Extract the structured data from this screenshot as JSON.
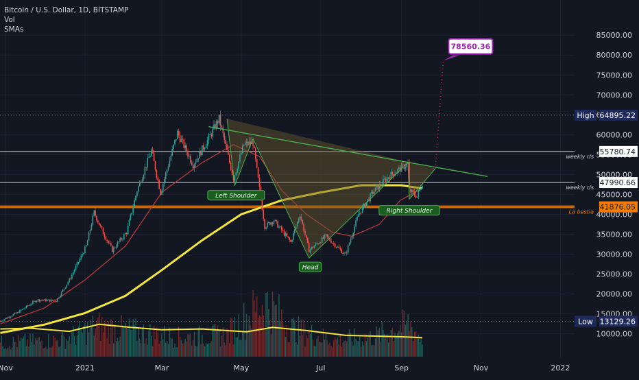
{
  "legend": {
    "symbol": "Bitcoin / U.S. Dollar, 1D, BITSTAMP",
    "vol": "Vol",
    "smas": "SMAs"
  },
  "chart_data": {
    "type": "candlestick",
    "ylim": [
      7000,
      89000
    ],
    "y_ticks": [
      10000,
      15000,
      20000,
      25000,
      30000,
      35000,
      40000,
      45000,
      50000,
      55000,
      60000,
      65000,
      70000,
      75000,
      80000,
      85000
    ],
    "y_tick_labels": [
      "10000.00",
      "15000.00",
      "20000.00",
      "25000.00",
      "30000.00",
      "35000.00",
      "40000.00",
      "45000.00",
      "50000.00",
      "55000.00",
      "60000.00",
      "65000.00",
      "70000.00",
      "75000.00",
      "80000.00",
      "85000.00"
    ],
    "x_labels": [
      {
        "text": "Nov",
        "date": "2020-11-01"
      },
      {
        "text": "2021",
        "date": "2021-01-01"
      },
      {
        "text": "Mar",
        "date": "2021-03-01"
      },
      {
        "text": "May",
        "date": "2021-05-01"
      },
      {
        "text": "Jul",
        "date": "2021-07-01"
      },
      {
        "text": "Sep",
        "date": "2021-09-01"
      },
      {
        "text": "Nov",
        "date": "2021-11-01"
      },
      {
        "text": "2022",
        "date": "2022-01-01"
      }
    ],
    "price_path": [
      [
        "2020-10-28",
        13200
      ],
      [
        "2020-11-10",
        15300
      ],
      [
        "2020-11-25",
        18500
      ],
      [
        "2020-12-10",
        18300
      ],
      [
        "2020-12-20",
        23500
      ],
      [
        "2021-01-02",
        32000
      ],
      [
        "2021-01-08",
        40500
      ],
      [
        "2021-01-14",
        36000
      ],
      [
        "2021-01-22",
        31000
      ],
      [
        "2021-02-02",
        35500
      ],
      [
        "2021-02-10",
        46000
      ],
      [
        "2021-02-21",
        56000
      ],
      [
        "2021-02-28",
        45500
      ],
      [
        "2021-03-13",
        60500
      ],
      [
        "2021-03-25",
        52500
      ],
      [
        "2021-04-05",
        58500
      ],
      [
        "2021-04-14",
        64000
      ],
      [
        "2021-04-25",
        49000
      ],
      [
        "2021-05-03",
        57500
      ],
      [
        "2021-05-10",
        58000
      ],
      [
        "2021-05-19",
        37000
      ],
      [
        "2021-05-26",
        38500
      ],
      [
        "2021-06-08",
        33000
      ],
      [
        "2021-06-15",
        40000
      ],
      [
        "2021-06-22",
        31000
      ],
      [
        "2021-07-05",
        34500
      ],
      [
        "2021-07-20",
        29800
      ],
      [
        "2021-07-30",
        40000
      ],
      [
        "2021-08-10",
        45500
      ],
      [
        "2021-08-22",
        49500
      ],
      [
        "2021-09-06",
        52700
      ],
      [
        "2021-09-07",
        46000
      ],
      [
        "2021-09-13",
        44500
      ],
      [
        "2021-09-17",
        47990
      ]
    ],
    "price_lines": [
      {
        "label": "High",
        "value": 64895.22,
        "text": "64895.22",
        "style": "dotted",
        "color": "#6b6f7a"
      },
      {
        "label": "weekly r/s",
        "value": 55780.74,
        "text": "55780.74",
        "style": "solid",
        "color": "#d1d4dc"
      },
      {
        "label": "weekly r/s",
        "value": 47990.66,
        "text": "47990.66",
        "style": "solid",
        "color": "#d1d4dc"
      },
      {
        "label": "La bestia",
        "value": 41876.05,
        "text": "41876.05",
        "style": "thick",
        "color": "#f57c00"
      },
      {
        "label": "Low",
        "value": 13129.26,
        "text": "13129.26",
        "style": "dotted",
        "color": "#6b6f7a"
      }
    ],
    "target": {
      "value": 78560.36,
      "text": "78560.36",
      "date": "2021-10-03",
      "color": "#9c27b0"
    },
    "sma_fast_path": [
      [
        "2020-10-28",
        12500
      ],
      [
        "2020-12-01",
        16500
      ],
      [
        "2021-01-01",
        23500
      ],
      [
        "2021-02-01",
        32000
      ],
      [
        "2021-03-01",
        45500
      ],
      [
        "2021-04-01",
        53000
      ],
      [
        "2021-04-25",
        57500
      ],
      [
        "2021-05-15",
        54500
      ],
      [
        "2021-06-01",
        46000
      ],
      [
        "2021-06-20",
        40000
      ],
      [
        "2021-07-10",
        35500
      ],
      [
        "2021-07-25",
        34500
      ],
      [
        "2021-08-15",
        37500
      ],
      [
        "2021-08-31",
        43500
      ],
      [
        "2021-09-17",
        46500
      ]
    ],
    "sma_slow_path": [
      [
        "2020-10-28",
        10200
      ],
      [
        "2020-12-01",
        12300
      ],
      [
        "2021-01-01",
        15200
      ],
      [
        "2021-02-01",
        19500
      ],
      [
        "2021-03-01",
        26000
      ],
      [
        "2021-04-01",
        33500
      ],
      [
        "2021-05-01",
        40000
      ],
      [
        "2021-06-01",
        43500
      ],
      [
        "2021-07-01",
        45500
      ],
      [
        "2021-08-01",
        47300
      ],
      [
        "2021-09-01",
        47300
      ],
      [
        "2021-09-17",
        46500
      ]
    ],
    "pattern": {
      "resistance_trendline": [
        [
          "2021-04-06",
          62000
        ],
        [
          "2021-11-06",
          49500
        ]
      ],
      "triangle_pairs": [
        [
          [
            "2021-04-20",
            64000
          ],
          [
            "2021-04-26",
            47200
          ]
        ],
        [
          [
            "2021-04-26",
            47200
          ],
          [
            "2021-05-10",
            59000
          ]
        ],
        [
          [
            "2021-05-10",
            59000
          ],
          [
            "2021-06-22",
            29000
          ]
        ],
        [
          [
            "2021-06-22",
            29000
          ],
          [
            "2021-09-06",
            53000
          ]
        ],
        [
          [
            "2021-09-06",
            53000
          ],
          [
            "2021-09-07",
            43800
          ]
        ],
        [
          [
            "2021-09-07",
            43800
          ],
          [
            "2021-09-27",
            51500
          ]
        ]
      ],
      "pattern_polygon": [
        [
          "2021-04-20",
          64000
        ],
        [
          "2021-04-26",
          47200
        ],
        [
          "2021-05-10",
          59000
        ],
        [
          "2021-06-22",
          29000
        ],
        [
          "2021-09-06",
          53000
        ],
        [
          "2021-09-07",
          43800
        ],
        [
          "2021-09-27",
          51500
        ]
      ],
      "projection": [
        [
          "2021-09-27",
          51500
        ],
        [
          "2021-10-03",
          78560
        ]
      ],
      "labels": [
        {
          "text": "Left Shoulder",
          "date": "2021-04-27",
          "value": 44800
        },
        {
          "text": "Head",
          "date": "2021-06-23",
          "value": 26800
        },
        {
          "text": "Right Shoulder",
          "date": "2021-09-07",
          "value": 41000
        }
      ]
    },
    "volume_path": [
      [
        "2020-10-28",
        0.25
      ],
      [
        "2020-12-15",
        0.3
      ],
      [
        "2021-01-10",
        0.55
      ],
      [
        "2021-02-10",
        0.45
      ],
      [
        "2021-03-15",
        0.35
      ],
      [
        "2021-04-20",
        0.4
      ],
      [
        "2021-05-19",
        1.0
      ],
      [
        "2021-06-10",
        0.5
      ],
      [
        "2021-07-10",
        0.3
      ],
      [
        "2021-08-10",
        0.35
      ],
      [
        "2021-09-07",
        0.6
      ],
      [
        "2021-09-17",
        0.3
      ]
    ],
    "vol_ma_path": [
      [
        "2020-10-28",
        11200
      ],
      [
        "2020-11-20",
        11400
      ],
      [
        "2020-12-20",
        10600
      ],
      [
        "2021-01-12",
        12400
      ],
      [
        "2021-02-05",
        11600
      ],
      [
        "2021-03-01",
        11000
      ],
      [
        "2021-04-01",
        11200
      ],
      [
        "2021-05-05",
        10500
      ],
      [
        "2021-05-25",
        11600
      ],
      [
        "2021-06-20",
        10800
      ],
      [
        "2021-07-20",
        9600
      ],
      [
        "2021-08-15",
        9400
      ],
      [
        "2021-09-05",
        9200
      ],
      [
        "2021-09-17",
        9000
      ]
    ],
    "colors": {
      "background": "#131722",
      "up": "#26a69a",
      "down": "#ef5350",
      "sma_fast": "#b23a3a",
      "sma_slow": "#f5e63b",
      "pattern": "#4caf50",
      "pattern_fill": "#6b5a2e",
      "axis_text": "#d1d4dc",
      "label_bg": "#1e2a5a"
    }
  }
}
